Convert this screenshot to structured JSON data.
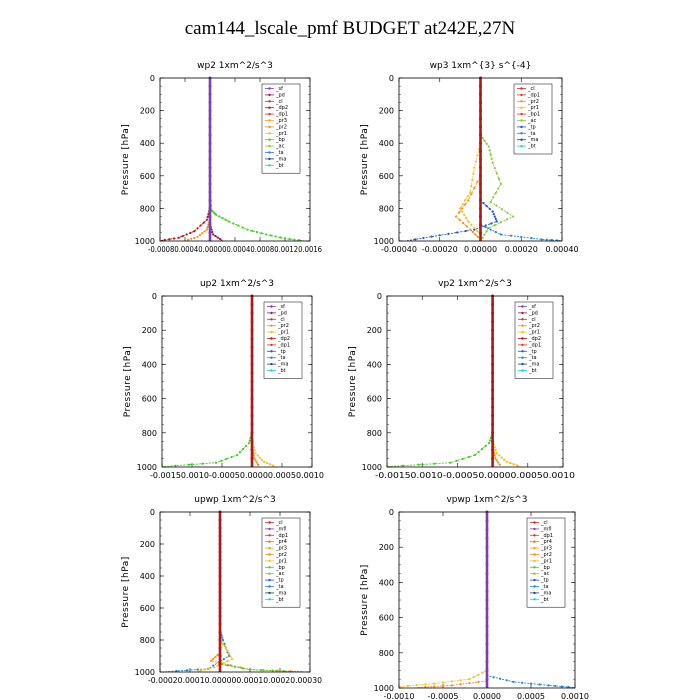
{
  "title": "cam144_lscale_pmf  BUDGET at242E,27N",
  "colors": {
    "sf": "#7a3fb0",
    "pd": "#a0155a",
    "cl": "#d42b2b",
    "dp2": "#b01818",
    "dp1": "#e8302a",
    "pr2": "#f09020",
    "pr1": "#f2c022",
    "pr3": "#f5a020",
    "pr4": "#e07820",
    "bp": "#44cc22",
    "ac": "#88cc33",
    "tp": "#2255cc",
    "ta": "#2288cc",
    "ma": "#224488",
    "bt": "#22cccc",
    "mfl": "#8844aa",
    "profile": "#b01818"
  },
  "chart_data": [
    {
      "type": "line",
      "title": "wp2   1xm^2/s^3",
      "ylabel": "Pressure [hPa]",
      "ylim": [
        0,
        1000
      ],
      "y_ticks": [
        "0",
        "200",
        "400",
        "600",
        "800",
        "1000"
      ],
      "xlim": [
        -0.0008,
        0.0016
      ],
      "x_ticks": [
        "-0.0008",
        "-0.0004",
        "0.0000",
        "0.0004",
        "0.0008",
        "0.0012",
        "0.0016"
      ],
      "x_tick_text": "-0.00080.00040.000000.00040.00080.00120.0016",
      "legend": [
        "_sf",
        "_pd",
        "_cl",
        "_dp2",
        "_dp1",
        "_pr3",
        "_pr2",
        "_pr1",
        "_bp",
        "_ac",
        "_ta",
        "_ma",
        "_bt"
      ],
      "series": [
        {
          "name": "_bp",
          "color_key": "bp",
          "points": [
            [
              0,
              0
            ],
            [
              0,
              700
            ],
            [
              2e-05,
              810
            ],
            [
              0.0001,
              840
            ],
            [
              0.0003,
              880
            ],
            [
              0.0006,
              930
            ],
            [
              0.0009,
              960
            ],
            [
              0.0012,
              985
            ],
            [
              0.0015,
              998
            ]
          ]
        },
        {
          "name": "_dp2",
          "color_key": "dp2",
          "points": [
            [
              0,
              0
            ],
            [
              0,
              800
            ],
            [
              -5e-05,
              870
            ],
            [
              -0.00025,
              940
            ],
            [
              -0.0005,
              980
            ],
            [
              -0.0008,
              998
            ]
          ]
        },
        {
          "name": "_pr2",
          "color_key": "pr2",
          "points": [
            [
              0,
              0
            ],
            [
              0,
              870
            ],
            [
              -5e-05,
              930
            ],
            [
              -0.0002,
              975
            ],
            [
              -0.0004,
              998
            ]
          ]
        },
        {
          "name": "_pd",
          "color_key": "pd",
          "points": [
            [
              0,
              0
            ],
            [
              0,
              900
            ],
            [
              5e-05,
              960
            ],
            [
              0.0002,
              998
            ]
          ]
        },
        {
          "name": "_sf",
          "color_key": "sf",
          "points": [
            [
              0,
              0
            ],
            [
              0,
              1000
            ]
          ]
        }
      ]
    },
    {
      "type": "line",
      "title": "wp3   1xm^{3} s^{-4}",
      "ylabel": "Pressure [hPa]",
      "ylim": [
        0,
        1000
      ],
      "y_ticks": [
        "0",
        "200",
        "400",
        "600",
        "800",
        "1000"
      ],
      "xlim": [
        -0.0004,
        0.0004
      ],
      "x_ticks": [
        "-0.00040",
        "-0.00020",
        "0.00000",
        "0.00020",
        "0.00040"
      ],
      "legend": [
        "_cl",
        "_dp1",
        "_pr2",
        "_pr1",
        "_bp1",
        "_ac",
        "_tp",
        "_ta",
        "_ma",
        "_bt"
      ],
      "series": [
        {
          "name": "_ac",
          "color_key": "ac",
          "points": [
            [
              0,
              0
            ],
            [
              0,
              350
            ],
            [
              4e-05,
              420
            ],
            [
              6e-05,
              520
            ],
            [
              0.0001,
              650
            ],
            [
              5e-05,
              760
            ],
            [
              0.00016,
              850
            ],
            [
              4e-05,
              920
            ],
            [
              0,
              1000
            ]
          ]
        },
        {
          "name": "_tp",
          "color_key": "tp",
          "points": [
            [
              0,
              0
            ],
            [
              0,
              750
            ],
            [
              6e-05,
              820
            ],
            [
              8e-05,
              880
            ],
            [
              -3e-05,
              930
            ],
            [
              -0.0002,
              965
            ],
            [
              -0.00036,
              998
            ]
          ]
        },
        {
          "name": "_pr1",
          "color_key": "pr1",
          "points": [
            [
              0,
              0
            ],
            [
              0,
              400
            ],
            [
              -3e-05,
              550
            ],
            [
              -5e-05,
              700
            ],
            [
              -0.0001,
              800
            ],
            [
              -6e-05,
              880
            ],
            [
              0,
              960
            ]
          ]
        },
        {
          "name": "_pr2",
          "color_key": "pr2",
          "points": [
            [
              0,
              0
            ],
            [
              0,
              600
            ],
            [
              -6e-05,
              750
            ],
            [
              -0.00012,
              850
            ],
            [
              -5e-05,
              930
            ],
            [
              0,
              990
            ]
          ]
        },
        {
          "name": "_ta",
          "color_key": "ta",
          "points": [
            [
              0,
              0
            ],
            [
              0,
              900
            ],
            [
              0.0001,
              960
            ],
            [
              0.0003,
              990
            ],
            [
              0.0004,
              998
            ]
          ]
        },
        {
          "name": "_cl",
          "color_key": "profile",
          "points": [
            [
              0,
              0
            ],
            [
              0,
              1000
            ]
          ]
        }
      ]
    },
    {
      "type": "line",
      "title": "up2   1xm^2/s^3",
      "ylabel": "Pressure [hPa]",
      "ylim": [
        0,
        1000
      ],
      "y_ticks": [
        "0",
        "200",
        "400",
        "600",
        "800",
        "1000"
      ],
      "xlim": [
        -0.0015,
        0.001
      ],
      "x_ticks": [
        "-0.0015",
        "-0.0010",
        "-0.0005",
        "0.0000",
        "0.0005",
        "0.0010"
      ],
      "x_tick_text": "-0.00150.0010-0.00050.00000.00050.0010",
      "legend": [
        "_sf",
        "_pd",
        "_cl",
        "_pr2",
        "_pr1",
        "_dp2",
        "_dp1",
        "_tp",
        "_ta",
        "_ma",
        "_bt"
      ],
      "series": [
        {
          "name": "_dp1",
          "color_key": "bp",
          "points": [
            [
              0,
              0
            ],
            [
              0,
              800
            ],
            [
              -5e-05,
              860
            ],
            [
              -0.00025,
              930
            ],
            [
              -0.0006,
              975
            ],
            [
              -0.0015,
              998
            ]
          ]
        },
        {
          "name": "_pr1",
          "color_key": "pr1",
          "points": [
            [
              0,
              0
            ],
            [
              0,
              850
            ],
            [
              6e-05,
              920
            ],
            [
              0.0002,
              970
            ],
            [
              0.0004,
              998
            ]
          ]
        },
        {
          "name": "_pr2",
          "color_key": "pr2",
          "points": [
            [
              0,
              0
            ],
            [
              0,
              880
            ],
            [
              4e-05,
              950
            ],
            [
              0.00012,
              998
            ]
          ]
        },
        {
          "name": "_sf",
          "color_key": "profile",
          "points": [
            [
              0,
              0
            ],
            [
              0,
              1000
            ]
          ]
        }
      ]
    },
    {
      "type": "line",
      "title": "vp2   1xm^2/s^3",
      "ylabel": "Pressure [hPa]",
      "ylim": [
        0,
        1000
      ],
      "y_ticks": [
        "0",
        "200",
        "400",
        "600",
        "800",
        "1000"
      ],
      "xlim": [
        -0.0015,
        0.001
      ],
      "x_ticks": [
        "-0.0015",
        "-0.0010",
        "-0.0005",
        "0.0000",
        "0.0005",
        "0.0010"
      ],
      "x_tick_text": "-0.00150.0010-0.00050.00000.00050.0010",
      "legend": [
        "_sf",
        "_pd",
        "_cl",
        "_pr2",
        "_pr1",
        "_dp2",
        "_dp1",
        "_tp",
        "_ta",
        "_ma",
        "_bt"
      ],
      "series": [
        {
          "name": "_dp1",
          "color_key": "bp",
          "points": [
            [
              0,
              0
            ],
            [
              0,
              800
            ],
            [
              -5e-05,
              860
            ],
            [
              -0.00025,
              930
            ],
            [
              -0.0006,
              975
            ],
            [
              -0.0015,
              998
            ]
          ]
        },
        {
          "name": "_pr1",
          "color_key": "pr1",
          "points": [
            [
              0,
              0
            ],
            [
              0,
              850
            ],
            [
              6e-05,
              920
            ],
            [
              0.0002,
              970
            ],
            [
              0.0004,
              998
            ]
          ]
        },
        {
          "name": "_pr2",
          "color_key": "pr2",
          "points": [
            [
              0,
              0
            ],
            [
              0,
              880
            ],
            [
              4e-05,
              950
            ],
            [
              0.00012,
              998
            ]
          ]
        },
        {
          "name": "_sf",
          "color_key": "profile",
          "points": [
            [
              0,
              0
            ],
            [
              0,
              1000
            ]
          ]
        }
      ]
    },
    {
      "type": "line",
      "title": "upwp   1xm^2/s^3",
      "ylabel": "Pressure [hPa]",
      "ylim": [
        0,
        1000
      ],
      "y_ticks": [
        "0",
        "200",
        "400",
        "600",
        "800",
        "1000"
      ],
      "xlim": [
        -0.0002,
        0.0003
      ],
      "x_ticks": [
        "-0.00020",
        "-0.00010",
        "0.00000",
        "0.00010",
        "0.00020",
        "0.00030"
      ],
      "x_tick_text": "-0.00020.00010.000000.00010.00020.00030",
      "legend": [
        "_cl",
        "_mfl",
        "_dp1",
        "_pr4",
        "_pr3",
        "_pr2",
        "_pr1",
        "_bp",
        "_ac",
        "_tp",
        "_ta",
        "_ma",
        "_bt"
      ],
      "series": [
        {
          "name": "_ta",
          "color_key": "ta",
          "points": [
            [
              0,
              0
            ],
            [
              0,
              740
            ],
            [
              1e-05,
              800
            ],
            [
              3e-05,
              900
            ],
            [
              -4e-05,
              980
            ],
            [
              -0.00018,
              998
            ]
          ]
        },
        {
          "name": "_pr1",
          "color_key": "pr1",
          "points": [
            [
              0,
              0
            ],
            [
              0,
              800
            ],
            [
              2e-05,
              850
            ],
            [
              4e-05,
              920
            ],
            [
              -2e-05,
              970
            ],
            [
              -8e-05,
              998
            ]
          ]
        },
        {
          "name": "_pr2",
          "color_key": "pr2",
          "points": [
            [
              0,
              0
            ],
            [
              0,
              880
            ],
            [
              -3e-05,
              930
            ],
            [
              0.0001,
              985
            ],
            [
              0.00028,
              998
            ]
          ]
        },
        {
          "name": "_bp",
          "color_key": "bp",
          "points": [
            [
              0,
              0
            ],
            [
              0,
              950
            ],
            [
              0.0001,
              985
            ],
            [
              0.00025,
              998
            ]
          ]
        },
        {
          "name": "_cl",
          "color_key": "profile",
          "points": [
            [
              0,
              0
            ],
            [
              0,
              1000
            ]
          ]
        }
      ]
    },
    {
      "type": "line",
      "title": "vpwp   1xm^2/s^3",
      "ylabel": "Pressure [hPa]",
      "ylim": [
        0,
        1000
      ],
      "y_ticks": [
        "0",
        "200",
        "400",
        "600",
        "800",
        "1000"
      ],
      "xlim": [
        -0.001,
        0.001
      ],
      "x_ticks": [
        "-0.0010",
        "-0.0005",
        "0.0000",
        "0.0005",
        "0.0010"
      ],
      "legend": [
        "_cl",
        "_mfl",
        "_dp1",
        "_pr4",
        "_pr3",
        "_pr2",
        "_pr1",
        "_bp",
        "_ac",
        "_tp",
        "_ta",
        "_ma",
        "_bt"
      ],
      "series": [
        {
          "name": "_pr1",
          "color_key": "pr1",
          "points": [
            [
              0,
              0
            ],
            [
              0,
              900
            ],
            [
              -0.0002,
              950
            ],
            [
              -0.0006,
              975
            ],
            [
              -0.001,
              992
            ]
          ]
        },
        {
          "name": "_ta",
          "color_key": "ta",
          "points": [
            [
              0,
              0
            ],
            [
              0,
              930
            ],
            [
              0.0003,
              965
            ],
            [
              0.0007,
              985
            ],
            [
              0.001,
              998
            ]
          ]
        },
        {
          "name": "_pr2",
          "color_key": "pr2",
          "points": [
            [
              0,
              0
            ],
            [
              0,
              960
            ],
            [
              -0.0004,
              985
            ],
            [
              -0.0008,
              998
            ]
          ]
        },
        {
          "name": "_cl",
          "color_key": "sf",
          "points": [
            [
              0,
              0
            ],
            [
              0,
              1000
            ]
          ]
        }
      ]
    }
  ]
}
